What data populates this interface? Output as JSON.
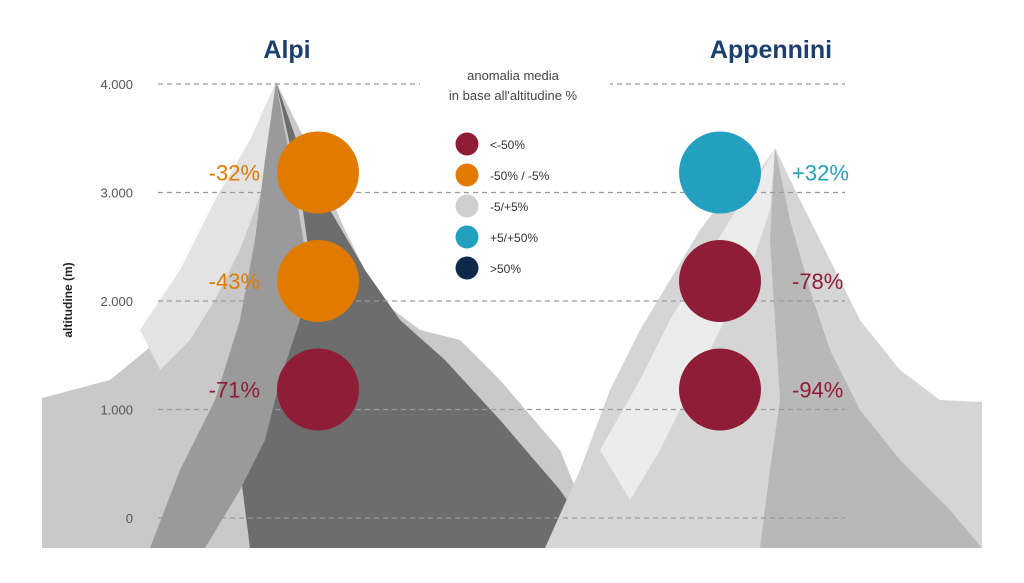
{
  "chart_data": {
    "type": "bubble",
    "ylabel": "altitudine (m)",
    "y_ticks": [
      {
        "value": 0,
        "label": "0"
      },
      {
        "value": 1000,
        "label": "1.000"
      },
      {
        "value": 2000,
        "label": "2.000"
      },
      {
        "value": 3000,
        "label": "3.000"
      },
      {
        "value": 4000,
        "label": "4.000"
      }
    ],
    "ylim": [
      0,
      4000
    ],
    "legend": {
      "title_line1": "anomalia media",
      "title_line2": "in base all'altitudine %",
      "entries": [
        {
          "label": "<-50%",
          "color": "#8e1d35"
        },
        {
          "label": "-50% / -5%",
          "color": "#e07b00"
        },
        {
          "label": "-5/+5%",
          "color": "#cfcfcf"
        },
        {
          "label": "+5/+50%",
          "color": "#23a0bf"
        },
        {
          "label": ">50%",
          "color": "#0d2a4a"
        }
      ]
    },
    "groups": [
      {
        "name": "Alpi",
        "points": [
          {
            "altitude": 3000,
            "value": -32,
            "label": "-32%",
            "color": "#e07b00"
          },
          {
            "altitude": 2000,
            "value": -43,
            "label": "-43%",
            "color": "#e07b00"
          },
          {
            "altitude": 1000,
            "value": -71,
            "label": "-71%",
            "color": "#8e1d35"
          }
        ]
      },
      {
        "name": "Appennini",
        "points": [
          {
            "altitude": 3000,
            "value": 32,
            "label": "+32%",
            "color": "#23a0bf"
          },
          {
            "altitude": 2000,
            "value": -78,
            "label": "-78%",
            "color": "#8e1d35"
          },
          {
            "altitude": 1000,
            "value": -94,
            "label": "-94%",
            "color": "#8e1d35"
          }
        ]
      }
    ],
    "grid": true
  }
}
